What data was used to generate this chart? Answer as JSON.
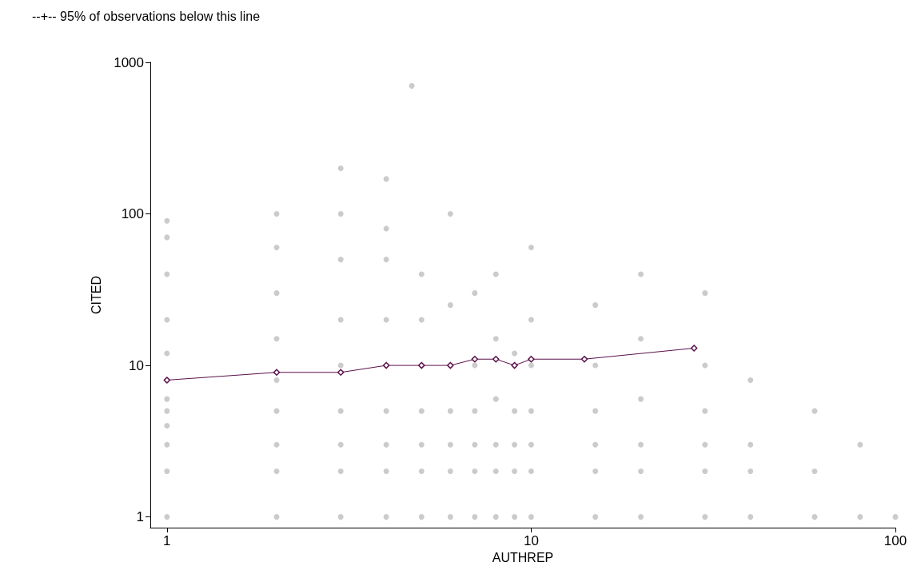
{
  "chart_data": {
    "type": "scatter",
    "xlabel": "AUTHREP",
    "ylabel": "CITED",
    "annotations": [
      "--+-- 95% of observations below this line"
    ],
    "log": "xy",
    "grid": false,
    "xlim": [
      0.9,
      100
    ],
    "xticks": [
      1,
      10,
      100
    ],
    "ylim": [
      0.85,
      1000
    ],
    "yticks": [
      1,
      10,
      100,
      1000
    ],
    "series": [
      {
        "type": "scatter",
        "color": "#bebebe",
        "marker": "circle",
        "x": [
          1,
          1,
          1,
          1,
          1,
          1,
          1,
          1,
          1,
          1,
          1,
          1,
          2,
          2,
          2,
          2,
          2,
          2,
          2,
          2,
          2,
          3,
          3,
          3,
          3,
          3,
          3,
          3,
          3,
          3,
          4,
          4,
          4,
          4,
          4,
          4,
          4,
          4,
          4,
          4.7,
          5,
          5,
          5,
          5,
          5,
          5,
          5,
          6,
          6,
          6,
          6,
          6,
          6,
          6,
          7,
          7,
          7,
          7,
          7,
          7,
          8,
          8,
          8,
          8,
          8,
          8,
          9,
          9,
          9,
          9,
          9,
          10,
          10,
          10,
          10,
          10,
          10,
          10,
          15,
          15,
          15,
          15,
          15,
          15,
          20,
          20,
          20,
          20,
          20,
          20,
          30,
          30,
          30,
          30,
          30,
          30,
          40,
          40,
          40,
          40,
          60,
          60,
          60,
          80,
          80,
          100
        ],
        "values": [
          1,
          2,
          3,
          4,
          5,
          6,
          8,
          12,
          20,
          40,
          70,
          90,
          1,
          2,
          3,
          5,
          8,
          15,
          30,
          60,
          100,
          1,
          2,
          3,
          5,
          10,
          20,
          50,
          100,
          200,
          1,
          2,
          3,
          5,
          10,
          20,
          50,
          80,
          170,
          700,
          1,
          2,
          3,
          5,
          10,
          20,
          40,
          1,
          2,
          3,
          5,
          10,
          25,
          100,
          1,
          2,
          3,
          5,
          10,
          30,
          1,
          2,
          3,
          6,
          15,
          40,
          1,
          2,
          3,
          5,
          12,
          1,
          2,
          3,
          5,
          10,
          20,
          60,
          1,
          2,
          3,
          5,
          10,
          25,
          1,
          2,
          3,
          6,
          15,
          40,
          1,
          2,
          3,
          5,
          10,
          30,
          1,
          2,
          3,
          8,
          1,
          2,
          5,
          1,
          3,
          1
        ]
      },
      {
        "type": "line",
        "color": "#5a0f4a",
        "marker": "diamond",
        "line_style": "solid",
        "x": [
          1,
          2,
          3,
          4,
          5,
          6,
          7,
          8,
          9,
          10,
          14,
          28
        ],
        "values": [
          8,
          9,
          9,
          10,
          10,
          10,
          11,
          11,
          10,
          11,
          11,
          13
        ]
      }
    ]
  }
}
